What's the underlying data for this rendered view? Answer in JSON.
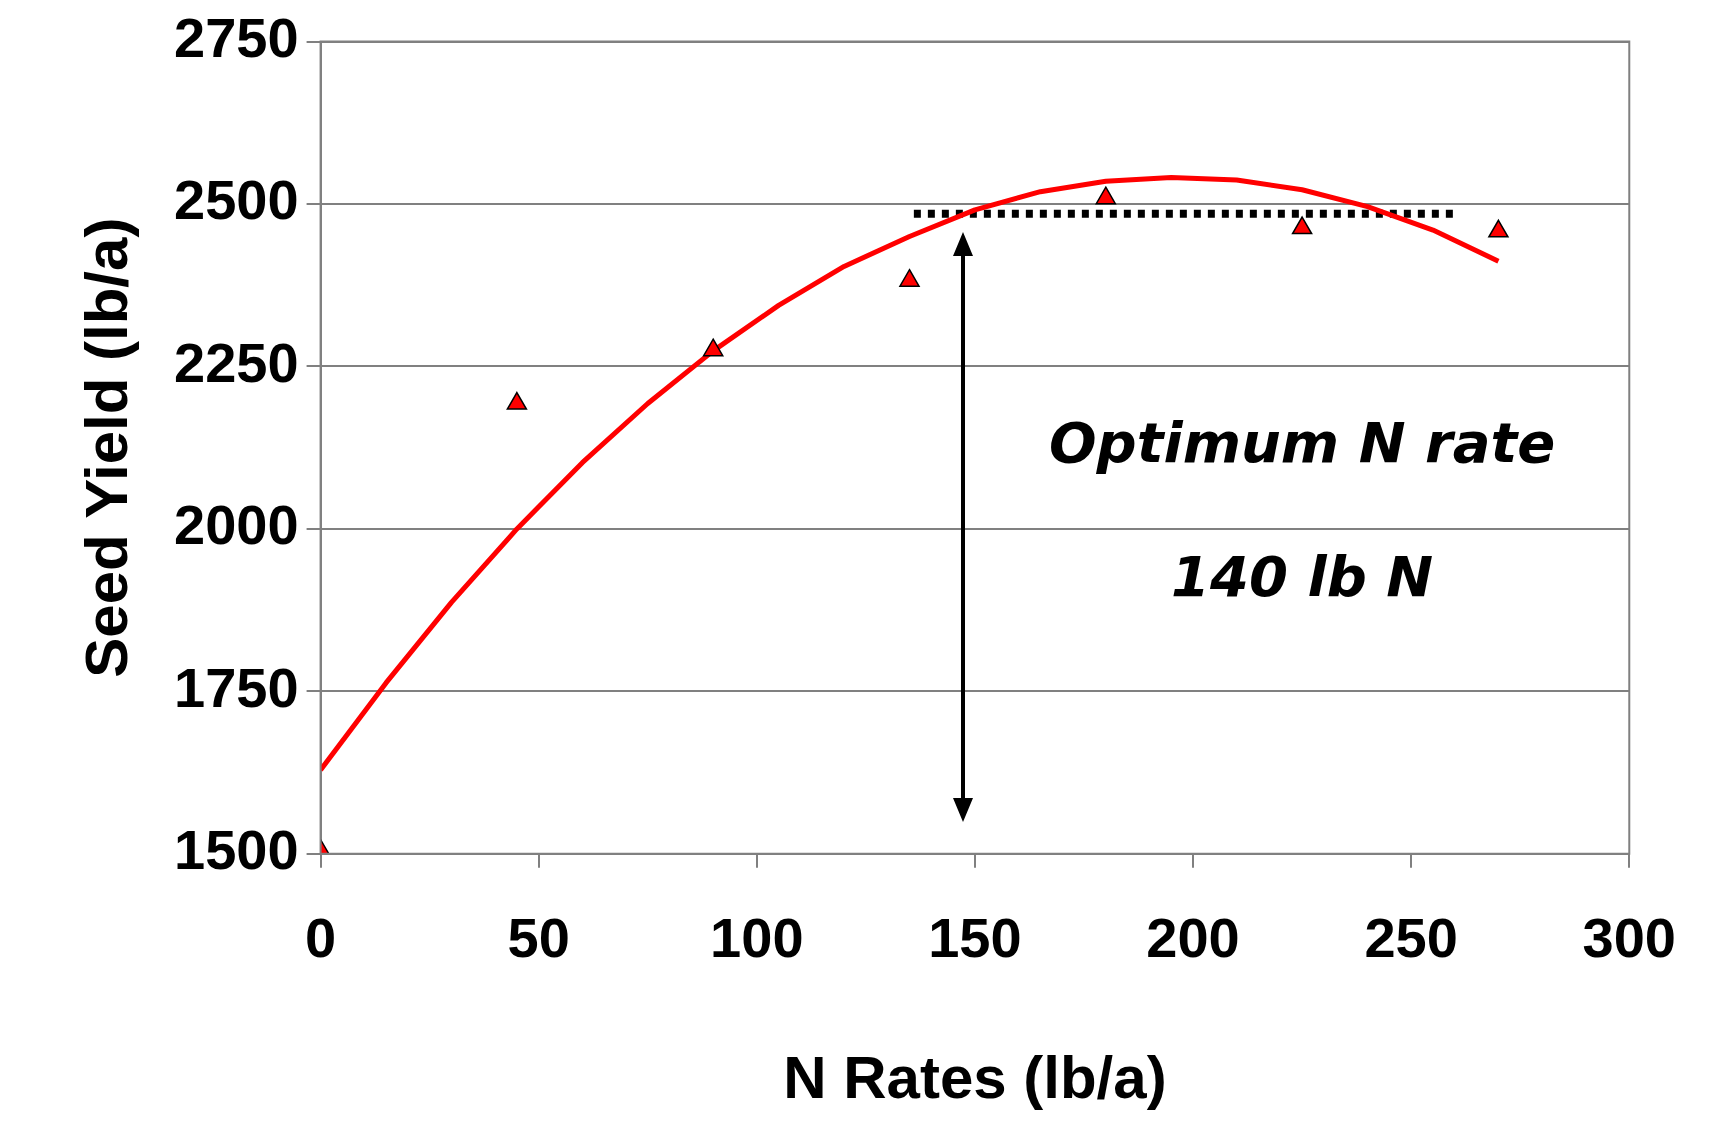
{
  "chart_data": {
    "type": "scatter",
    "xlabel": "N Rates (lb/a)",
    "ylabel": "Seed Yield (lb/a)",
    "xlim": [
      0,
      300
    ],
    "xticks": [
      0,
      50,
      100,
      150,
      200,
      250,
      300
    ],
    "ylim": [
      1500,
      2750
    ],
    "yticks": [
      1500,
      1750,
      2000,
      2250,
      2500,
      2750
    ],
    "grid": "y",
    "legend": false,
    "series": [
      {
        "type": "line",
        "color": "#ff0000",
        "marker": "none",
        "line_style": "solid",
        "x": [
          0,
          15,
          30,
          45,
          60,
          75,
          90,
          105,
          120,
          135,
          150,
          165,
          180,
          195,
          210,
          225,
          240,
          255,
          270
        ],
        "values": [
          1629,
          1763,
          1887,
          2000,
          2102,
          2193,
          2274,
          2344,
          2404,
          2450,
          2491,
          2519,
          2535,
          2541,
          2537,
          2522,
          2496,
          2460,
          2412
        ]
      },
      {
        "type": "line",
        "color": "#000000",
        "marker": "none",
        "line_style": "dotted",
        "x": [
          136,
          261
        ],
        "values": [
          2485,
          2485
        ]
      },
      {
        "color": "#ff0000",
        "marker": "triangle",
        "x": [
          0,
          45,
          90,
          135,
          180,
          225,
          270
        ],
        "values": [
          1505,
          2193,
          2275,
          2382,
          2509,
          2463,
          2458
        ]
      }
    ],
    "annotations": [
      "Optimum N rate",
      "140 lb N"
    ]
  }
}
